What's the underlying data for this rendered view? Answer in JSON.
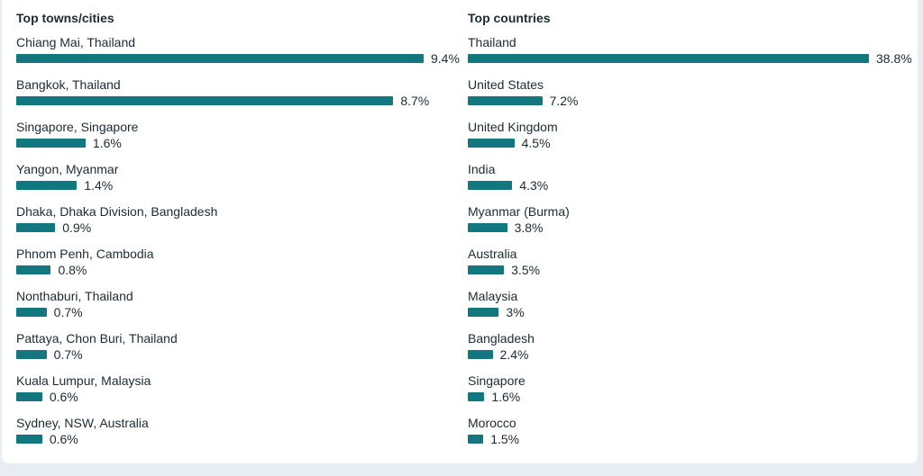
{
  "chart_data": [
    {
      "type": "bar",
      "orientation": "horizontal",
      "title": "Top towns/cities",
      "unit": "%",
      "categories": [
        "Chiang Mai, Thailand",
        "Bangkok, Thailand",
        "Singapore, Singapore",
        "Yangon, Myanmar",
        "Dhaka, Dhaka Division, Bangladesh",
        "Phnom Penh, Cambodia",
        "Nonthaburi, Thailand",
        "Pattaya, Chon Buri, Thailand",
        "Kuala Lumpur, Malaysia",
        "Sydney, NSW, Australia"
      ],
      "values": [
        9.4,
        8.7,
        1.6,
        1.4,
        0.9,
        0.8,
        0.7,
        0.7,
        0.6,
        0.6
      ],
      "value_labels": [
        "9.4%",
        "8.7%",
        "1.6%",
        "1.4%",
        "0.9%",
        "0.8%",
        "0.7%",
        "0.7%",
        "0.6%",
        "0.6%"
      ],
      "bar_color": "#12777f",
      "grid": false
    },
    {
      "type": "bar",
      "orientation": "horizontal",
      "title": "Top countries",
      "unit": "%",
      "categories": [
        "Thailand",
        "United States",
        "United Kingdom",
        "India",
        "Myanmar (Burma)",
        "Australia",
        "Malaysia",
        "Bangladesh",
        "Singapore",
        "Morocco"
      ],
      "values": [
        38.8,
        7.2,
        4.5,
        4.3,
        3.8,
        3.5,
        3.0,
        2.4,
        1.6,
        1.5
      ],
      "value_labels": [
        "38.8%",
        "7.2%",
        "4.5%",
        "4.3%",
        "3.8%",
        "3.5%",
        "3%",
        "2.4%",
        "1.6%",
        "1.5%"
      ],
      "bar_color": "#12777f",
      "grid": false
    }
  ]
}
